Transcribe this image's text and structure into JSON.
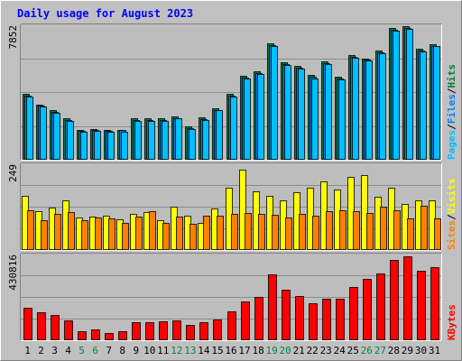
{
  "chart_data": {
    "type": "bar",
    "title": "Daily usage for August 2023",
    "categories": [
      "1",
      "2",
      "3",
      "4",
      "5",
      "6",
      "7",
      "8",
      "9",
      "10",
      "11",
      "12",
      "13",
      "14",
      "15",
      "16",
      "17",
      "18",
      "19",
      "20",
      "21",
      "22",
      "23",
      "24",
      "25",
      "26",
      "27",
      "28",
      "29",
      "30",
      "31"
    ],
    "weekend_days": [
      "5",
      "6",
      "12",
      "13",
      "19",
      "20",
      "26",
      "27"
    ],
    "colors": {
      "background": "#c0c0c0",
      "plot_bg": "#bdbdbd",
      "hits": "#008040",
      "files": "#0080ff",
      "pages": "#00c0ff",
      "visits": "#ffff00",
      "sites": "#ff8000",
      "kbytes": "#ff0000",
      "title": "#0000ff",
      "weekend_label": "#00805c"
    },
    "panels": [
      {
        "id": "requests",
        "ymax_label": "7852",
        "ylim": [
          0,
          7852
        ],
        "legend": [
          {
            "text": "Pages",
            "color": "#00c0ff"
          },
          {
            "text": "/",
            "color": "#000000"
          },
          {
            "text": "Files",
            "color": "#0080ff"
          },
          {
            "text": "/",
            "color": "#000000"
          },
          {
            "text": "Hits",
            "color": "#008040"
          }
        ],
        "series": [
          {
            "name": "Hits",
            "color": "#008040",
            "values": [
              3900,
              3300,
              2950,
              2450,
              1750,
              1850,
              1800,
              1800,
              2450,
              2450,
              2450,
              2580,
              1980,
              2520,
              3080,
              3900,
              5000,
              5250,
              6950,
              5800,
              5600,
              5050,
              5850,
              4950,
              6250,
              6050,
              6500,
              7850,
              7950,
              6600,
              6900
            ]
          },
          {
            "name": "Files",
            "color": "#0080ff",
            "values": [
              3800,
              3200,
              2850,
              2350,
              1700,
              1750,
              1700,
              1750,
              2350,
              2350,
              2350,
              2480,
              1880,
              2420,
              2980,
              3800,
              4900,
              5150,
              6850,
              5700,
              5500,
              4950,
              5750,
              4850,
              6150,
              5950,
              6400,
              7750,
              7850,
              6500,
              6800
            ]
          },
          {
            "name": "Pages",
            "color": "#00c0ff",
            "values": [
              3750,
              3150,
              2800,
              2300,
              1650,
              1700,
              1650,
              1650,
              2300,
              2300,
              2300,
              2450,
              1850,
              2350,
              2950,
              3750,
              4850,
              5100,
              6800,
              5650,
              5450,
              4850,
              5700,
              4800,
              6100,
              5900,
              6350,
              7700,
              7800,
              6450,
              6750
            ]
          }
        ]
      },
      {
        "id": "visitors",
        "ymax_label": "249",
        "ylim": [
          0,
          249
        ],
        "legend": [
          {
            "text": "Sites",
            "color": "#ff8000"
          },
          {
            "text": "/",
            "color": "#000000"
          },
          {
            "text": "Visits",
            "color": "#ffff00"
          }
        ],
        "series": [
          {
            "name": "Visits",
            "color": "#ffff00",
            "values": [
              163,
              116,
              127,
              148,
              98,
              100,
              103,
              91,
              107,
              114,
              88,
              131,
              104,
              82,
              124,
              188,
              240,
              175,
              162,
              150,
              174,
              187,
              205,
              180,
              218,
              224,
              160,
              188,
              137,
              148,
              148
            ]
          },
          {
            "name": "Sites",
            "color": "#ff8000",
            "values": [
              120,
              88,
              108,
              114,
              90,
              98,
              95,
              82,
              100,
              117,
              82,
              100,
              78,
              103,
              103,
              107,
              110,
              107,
              105,
              98,
              108,
              103,
              117,
              118,
              117,
              110,
              130,
              120,
              95,
              132,
              95
            ]
          }
        ]
      },
      {
        "id": "kbytes",
        "ymax_label": "430816",
        "ylim": [
          0,
          430816
        ],
        "legend": [
          {
            "text": "KBytes",
            "color": "#ff0000"
          }
        ],
        "series": [
          {
            "name": "KBytes",
            "color": "#ff0000",
            "values": [
              168000,
              143000,
              129000,
              104000,
              47000,
              57000,
              38000,
              46000,
              95000,
              92000,
              97000,
              104000,
              80000,
              95000,
              108000,
              150000,
              200000,
              225000,
              343000,
              264000,
              229000,
              190000,
              216000,
              216000,
              276000,
              318000,
              346000,
              417000,
              436000,
              359000,
              377000
            ]
          }
        ]
      }
    ]
  }
}
